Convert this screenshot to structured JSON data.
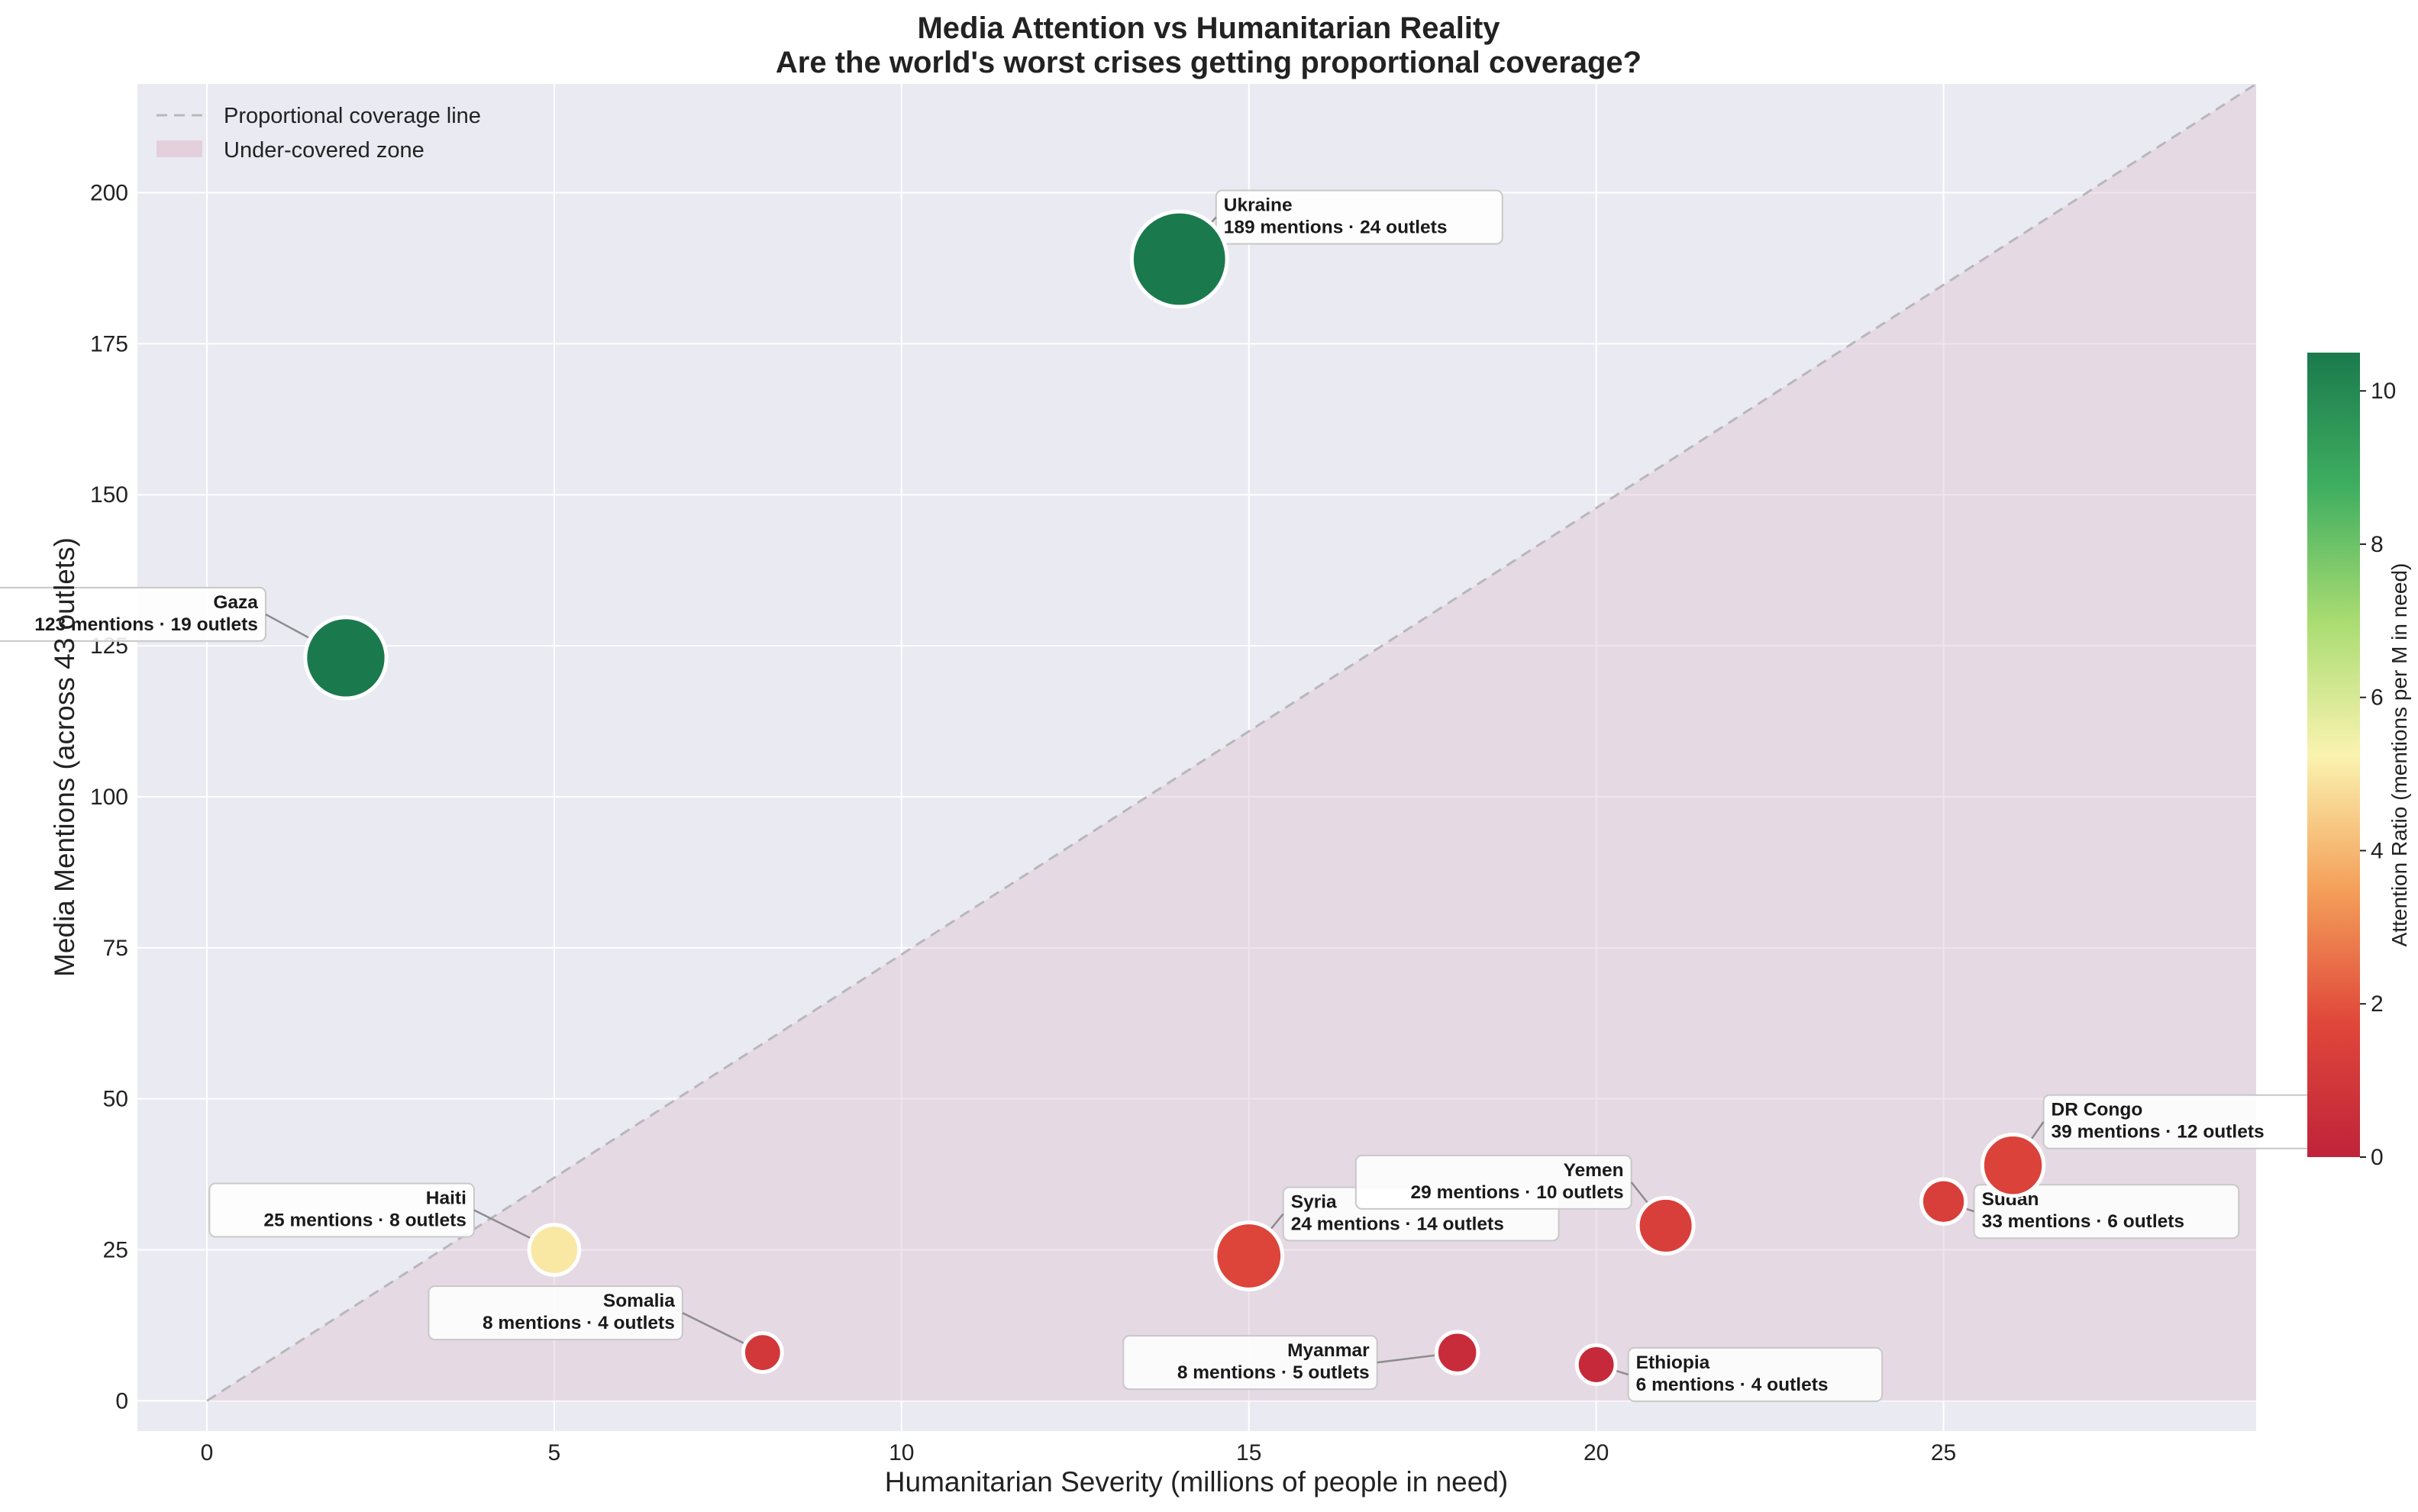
{
  "chart_data": {
    "type": "scatter",
    "title": "Media Attention vs Humanitarian Reality",
    "subtitle": "Are the world's worst crises getting proportional coverage?",
    "xlabel": "Humanitarian Severity (millions of people in need)",
    "ylabel": "Media Mentions (across 43 outlets)",
    "xlim": [
      -1,
      29.5
    ],
    "ylim": [
      -5,
      218
    ],
    "xticks": [
      0,
      5,
      10,
      15,
      20,
      25
    ],
    "yticks": [
      0,
      25,
      50,
      75,
      100,
      125,
      150,
      175,
      200
    ],
    "grid": true,
    "legend": {
      "position": "top-left",
      "entries": [
        "Proportional coverage line",
        "Under-covered zone"
      ]
    },
    "proportional_line": {
      "x": [
        0,
        29.5
      ],
      "y": [
        0,
        218
      ]
    },
    "colorbar": {
      "label": "Attention Ratio (mentions per M in need)",
      "min": 0,
      "max": 10.5,
      "ticks": [
        0,
        2,
        4,
        6,
        8,
        10
      ],
      "colormap": [
        "#c0233a",
        "#e0473a",
        "#f4a05a",
        "#faf3b0",
        "#a9dc72",
        "#3fae60",
        "#1a7a4d"
      ]
    },
    "points": [
      {
        "name": "Ukraine",
        "x": 14,
        "y": 189,
        "outlets": 24,
        "ratio": 13.5,
        "label": "189 mentions · 24 outlets",
        "label_side": "right"
      },
      {
        "name": "Gaza",
        "x": 2,
        "y": 123,
        "outlets": 19,
        "ratio": 61.5,
        "label": "123 mentions · 19 outlets",
        "label_side": "left"
      },
      {
        "name": "Haiti",
        "x": 5,
        "y": 25,
        "outlets": 8,
        "ratio": 5.0,
        "label": "25 mentions · 8 outlets",
        "label_side": "left"
      },
      {
        "name": "Somalia",
        "x": 8,
        "y": 8,
        "outlets": 4,
        "ratio": 1.0,
        "label": "8 mentions · 4 outlets",
        "label_side": "left"
      },
      {
        "name": "Syria",
        "x": 15,
        "y": 24,
        "outlets": 14,
        "ratio": 1.6,
        "label": "24 mentions · 14 outlets",
        "label_side": "right"
      },
      {
        "name": "Myanmar",
        "x": 18,
        "y": 8,
        "outlets": 5,
        "ratio": 0.44,
        "label": "8 mentions · 5 outlets",
        "label_side": "left"
      },
      {
        "name": "Ethiopia",
        "x": 20,
        "y": 6,
        "outlets": 4,
        "ratio": 0.3,
        "label": "6 mentions · 4 outlets",
        "label_side": "right"
      },
      {
        "name": "Yemen",
        "x": 21,
        "y": 29,
        "outlets": 10,
        "ratio": 1.38,
        "label": "29 mentions · 10 outlets",
        "label_side": "left"
      },
      {
        "name": "Sudan",
        "x": 25,
        "y": 33,
        "outlets": 6,
        "ratio": 1.32,
        "label": "33 mentions · 6 outlets",
        "label_side": "right"
      },
      {
        "name": "DR Congo",
        "x": 26,
        "y": 39,
        "outlets": 12,
        "ratio": 1.5,
        "label": "39 mentions · 12 outlets",
        "label_side": "right"
      }
    ]
  }
}
